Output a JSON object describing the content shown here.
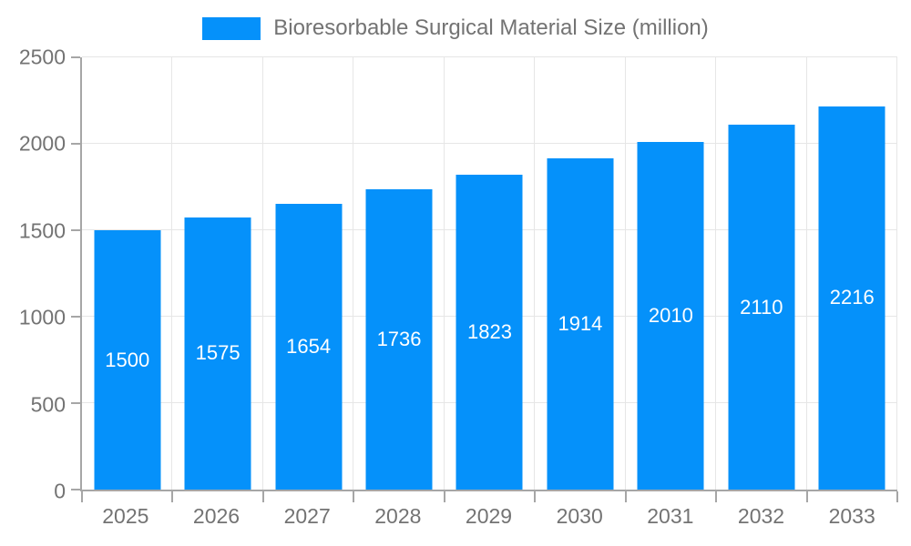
{
  "colors": {
    "bar": "#0591fa",
    "grid": "#e6e6e6",
    "axis": "#a6a6a6",
    "text": "#737373",
    "bar_label": "#ffffff",
    "background": "#ffffff"
  },
  "legend": {
    "label": "Bioresorbable Surgical Material Size (million)"
  },
  "chart_data": {
    "type": "bar",
    "title": "Bioresorbable Surgical Material Size (million)",
    "categories": [
      "2025",
      "2026",
      "2027",
      "2028",
      "2029",
      "2030",
      "2031",
      "2032",
      "2033"
    ],
    "values": [
      1500,
      1575,
      1654,
      1736,
      1823,
      1914,
      2010,
      2110,
      2216
    ],
    "xlabel": "",
    "ylabel": "",
    "ylim": [
      0,
      2500
    ],
    "yticks": [
      0,
      500,
      1000,
      1500,
      2000,
      2500
    ],
    "grid": true,
    "legend_position": "top",
    "bar_labels": "inside-center"
  }
}
